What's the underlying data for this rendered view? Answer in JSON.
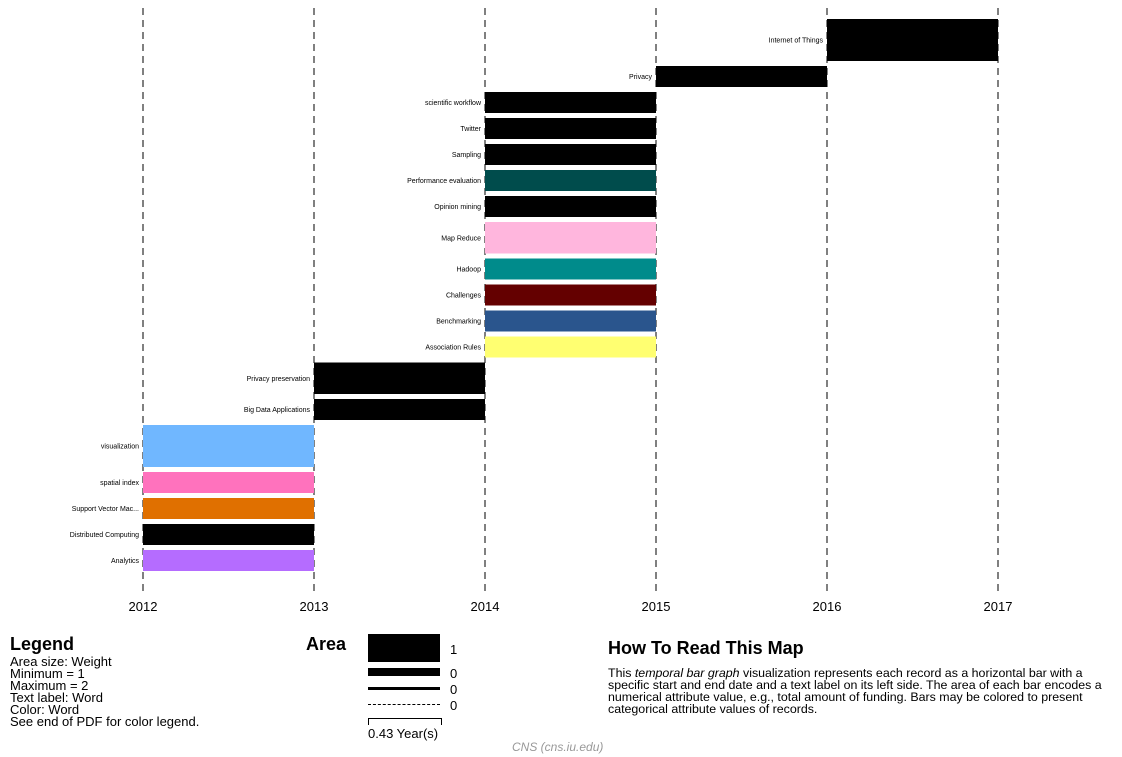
{
  "chart_data": {
    "type": "temporal-bar",
    "x_ticks": [
      "2012",
      "2013",
      "2014",
      "2015",
      "2016",
      "2017"
    ],
    "xlim": [
      2012,
      2017
    ],
    "grid": "vertical dashed at each year",
    "bars": [
      {
        "label": "Internet of Things",
        "start": 2016,
        "end": 2017,
        "weight": 2,
        "color": "#000000"
      },
      {
        "label": "Privacy",
        "start": 2015,
        "end": 2016,
        "weight": 1,
        "color": "#000000"
      },
      {
        "label": "scientific workflow",
        "start": 2014,
        "end": 2015,
        "weight": 1,
        "color": "#000000"
      },
      {
        "label": "Twitter",
        "start": 2014,
        "end": 2015,
        "weight": 1,
        "color": "#000000"
      },
      {
        "label": "Sampling",
        "start": 2014,
        "end": 2015,
        "weight": 1,
        "color": "#000000"
      },
      {
        "label": "Performance evaluation",
        "start": 2014,
        "end": 2015,
        "weight": 1,
        "color": "#004c4c"
      },
      {
        "label": "Opinion mining",
        "start": 2014,
        "end": 2015,
        "weight": 1,
        "color": "#000000"
      },
      {
        "label": "Map Reduce",
        "start": 2014,
        "end": 2015,
        "weight": 1.5,
        "color": "#ffb6dd"
      },
      {
        "label": "Hadoop",
        "start": 2014,
        "end": 2015,
        "weight": 1,
        "color": "#008b8b"
      },
      {
        "label": "Challenges",
        "start": 2014,
        "end": 2015,
        "weight": 1,
        "color": "#640000"
      },
      {
        "label": "Benchmarking",
        "start": 2014,
        "end": 2015,
        "weight": 1,
        "color": "#2a558d"
      },
      {
        "label": "Association Rules",
        "start": 2014,
        "end": 2015,
        "weight": 1,
        "color": "#ffff71"
      },
      {
        "label": "Privacy preservation",
        "start": 2013,
        "end": 2014,
        "weight": 1.5,
        "color": "#000000"
      },
      {
        "label": "Big Data Applications",
        "start": 2013,
        "end": 2014,
        "weight": 1,
        "color": "#000000"
      },
      {
        "label": "visualization",
        "start": 2012,
        "end": 2013,
        "weight": 2,
        "color": "#70b7ff"
      },
      {
        "label": "spatial index",
        "start": 2012,
        "end": 2013,
        "weight": 1,
        "color": "#ff72bd"
      },
      {
        "label": "Support Vector Mac...",
        "start": 2012,
        "end": 2013,
        "weight": 1,
        "color": "#e07000"
      },
      {
        "label": "Distributed Computing",
        "start": 2012,
        "end": 2013,
        "weight": 1,
        "color": "#000000"
      },
      {
        "label": "Analytics",
        "start": 2012,
        "end": 2013,
        "weight": 1,
        "color": "#b56cff"
      }
    ]
  },
  "legend": {
    "title": "Legend",
    "lines": [
      "Area size: Weight",
      "Minimum = 1",
      "Maximum = 2",
      "Text label: Word",
      "Color: Word",
      "See end of PDF for color legend."
    ]
  },
  "area": {
    "title": "Area",
    "values": [
      "1",
      "0",
      "0",
      "0"
    ],
    "scale_label": "0.43 Year(s)"
  },
  "how_to_read": {
    "title": "How To Read This Map",
    "text_before": "This ",
    "text_em": "temporal bar graph",
    "text_after": " visualization represents each record as a horizontal bar with a specific start and end date and a text label on its left side. The area of each bar encodes a numerical attribute value, e.g., total amount of funding. Bars may be colored to present categorical attribute values of records."
  },
  "credit": "CNS (cns.iu.edu)"
}
